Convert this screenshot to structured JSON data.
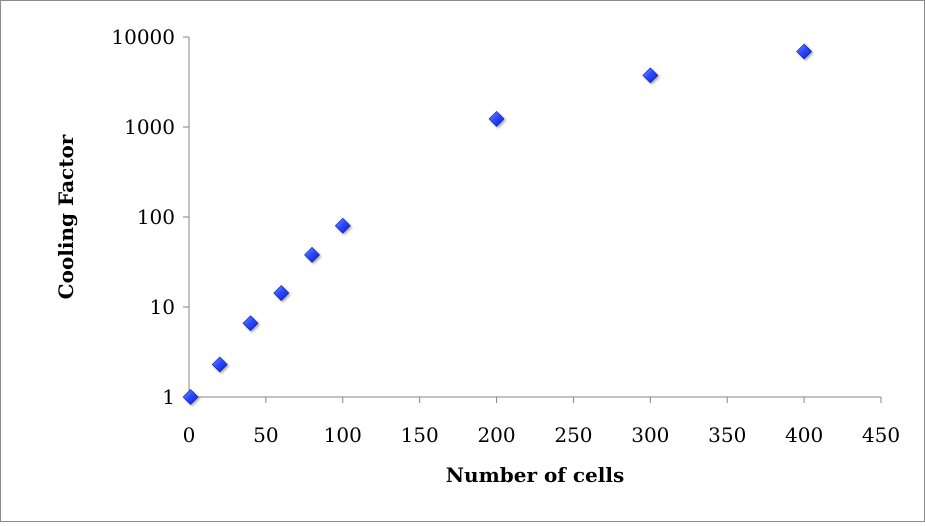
{
  "chart_data": {
    "type": "scatter",
    "xlabel": "Number of cells",
    "ylabel": "Cooling Factor",
    "xlim": [
      0,
      450
    ],
    "ylim": [
      1,
      10000
    ],
    "y_scale": "log",
    "grid": false,
    "legend": "none",
    "x_ticks": [
      "0",
      "50",
      "100",
      "150",
      "200",
      "250",
      "300",
      "350",
      "400",
      "450"
    ],
    "y_ticks": [
      "1",
      "10",
      "100",
      "1000",
      "10000"
    ],
    "marker": "diamond",
    "marker_color": "#1f3fff",
    "series": [
      {
        "x": [
          1,
          20,
          40,
          60,
          80,
          100,
          200,
          300,
          400
        ],
        "y": [
          1,
          2.3,
          6.6,
          14.3,
          38,
          80,
          1230,
          3750,
          6900
        ]
      }
    ]
  }
}
